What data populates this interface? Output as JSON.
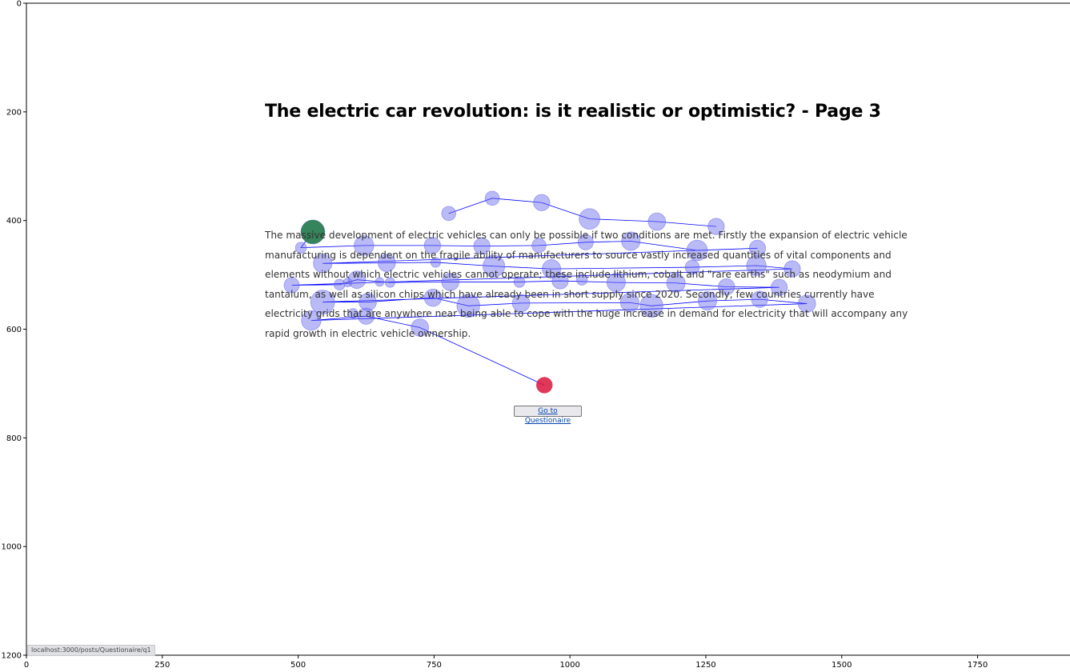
{
  "page": {
    "title": "The electric car revolution: is it realistic or optimistic? - Page 3",
    "paragraph_lines": [
      "The massive development of electric vehicles can only be possible if two conditions are met. Firstly the expansion of electric vehicle",
      "manufacturing is dependent on the fragile ability of manufacturers to source vastly increased quantities of vital components and",
      "elements without which electric vehicles cannot operate; these include lithium, cobalt and \"rare earths\" such as neodymium and",
      "tantalum, as well as silicon chips which have already been in short supply since 2020. Secondly, few countries currently have",
      "electricity grids that are anywhere near being able to cope with the huge increase in demand for electricity that will accompany any",
      "rapid growth in electric vehicle ownership."
    ],
    "questionnaire_button": "Go to Questionaire"
  },
  "status_bar": {
    "url": "localhost:3000/posts/Questionaire/q1"
  },
  "axes": {
    "x_ticks": [
      "0",
      "250",
      "500",
      "750",
      "1000",
      "1250",
      "1500",
      "1750"
    ],
    "y_ticks": [
      "0",
      "200",
      "400",
      "600",
      "800",
      "1000",
      "1200"
    ],
    "x_range": [
      0,
      1920
    ],
    "y_range": [
      0,
      1200
    ]
  },
  "chart_data": {
    "type": "scatter",
    "description_free": true,
    "x_range": [
      0,
      1920
    ],
    "y_range": [
      1200,
      0
    ],
    "colors": {
      "fixation": "#6666ee",
      "start": "#1e7a3e",
      "end": "#dc143c",
      "path": "#0000ff"
    },
    "start": {
      "x": 527,
      "y": 421,
      "r": 22
    },
    "end": {
      "x": 953,
      "y": 703,
      "r": 15
    },
    "fixations": [
      [
        527,
        421,
        22
      ],
      [
        505,
        450,
        10
      ],
      [
        621,
        446,
        18
      ],
      [
        747,
        446,
        15
      ],
      [
        838,
        447,
        15
      ],
      [
        943,
        446,
        13
      ],
      [
        1029,
        440,
        14
      ],
      [
        1112,
        438,
        17
      ],
      [
        1234,
        455,
        19
      ],
      [
        1345,
        451,
        15
      ],
      [
        545,
        479,
        17
      ],
      [
        663,
        478,
        16
      ],
      [
        753,
        477,
        9
      ],
      [
        860,
        484,
        20
      ],
      [
        966,
        489,
        17
      ],
      [
        1225,
        486,
        13
      ],
      [
        1343,
        483,
        18
      ],
      [
        1409,
        489,
        15
      ],
      [
        488,
        519,
        14
      ],
      [
        576,
        518,
        10
      ],
      [
        591,
        514,
        8
      ],
      [
        608,
        509,
        16
      ],
      [
        650,
        513,
        8
      ],
      [
        669,
        514,
        9
      ],
      [
        780,
        513,
        16
      ],
      [
        907,
        513,
        10
      ],
      [
        982,
        511,
        15
      ],
      [
        1022,
        509,
        10
      ],
      [
        1085,
        514,
        17
      ],
      [
        1195,
        515,
        17
      ],
      [
        1288,
        522,
        15
      ],
      [
        1385,
        523,
        15
      ],
      [
        545,
        550,
        22
      ],
      [
        628,
        550,
        16
      ],
      [
        748,
        542,
        16
      ],
      [
        601,
        571,
        9
      ],
      [
        813,
        557,
        21
      ],
      [
        910,
        552,
        16
      ],
      [
        1110,
        551,
        17
      ],
      [
        1150,
        557,
        21
      ],
      [
        1253,
        548,
        17
      ],
      [
        1349,
        545,
        15
      ],
      [
        1436,
        553,
        16
      ],
      [
        524,
        584,
        18
      ],
      [
        625,
        576,
        15
      ],
      [
        724,
        597,
        16
      ],
      [
        777,
        387,
        13
      ],
      [
        857,
        359,
        13
      ],
      [
        948,
        367,
        15
      ],
      [
        1036,
        397,
        19
      ],
      [
        1160,
        402,
        16
      ],
      [
        1269,
        411,
        15
      ]
    ],
    "path_order": [
      [
        777,
        387
      ],
      [
        857,
        359
      ],
      [
        948,
        367
      ],
      [
        1036,
        397
      ],
      [
        1160,
        402
      ],
      [
        1269,
        411
      ]
    ],
    "scan_path": [
      [
        527,
        421
      ],
      [
        505,
        450
      ],
      [
        621,
        446
      ],
      [
        747,
        446
      ],
      [
        838,
        447
      ],
      [
        943,
        446
      ],
      [
        1029,
        440
      ],
      [
        1112,
        438
      ],
      [
        1234,
        455
      ],
      [
        1345,
        451
      ],
      [
        545,
        479
      ],
      [
        663,
        478
      ],
      [
        753,
        477
      ],
      [
        860,
        484
      ],
      [
        966,
        489
      ],
      [
        1225,
        486
      ],
      [
        1343,
        483
      ],
      [
        1409,
        489
      ],
      [
        488,
        519
      ],
      [
        576,
        518
      ],
      [
        608,
        509
      ],
      [
        669,
        514
      ],
      [
        780,
        513
      ],
      [
        907,
        513
      ],
      [
        982,
        511
      ],
      [
        1085,
        514
      ],
      [
        1195,
        515
      ],
      [
        1288,
        522
      ],
      [
        1385,
        523
      ],
      [
        545,
        550
      ],
      [
        628,
        550
      ],
      [
        748,
        542
      ],
      [
        813,
        557
      ],
      [
        910,
        552
      ],
      [
        1110,
        551
      ],
      [
        1150,
        557
      ],
      [
        1253,
        548
      ],
      [
        1349,
        545
      ],
      [
        1436,
        553
      ],
      [
        524,
        584
      ],
      [
        625,
        576
      ],
      [
        724,
        597
      ],
      [
        953,
        703
      ]
    ]
  }
}
